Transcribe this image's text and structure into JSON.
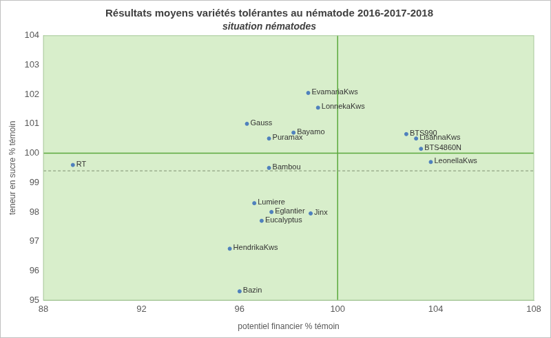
{
  "chart_data": {
    "type": "scatter",
    "title": "Résultats moyens variétés tolérantes au nématode 2016-2017-2018",
    "subtitle": "situation nématodes",
    "x_label": "potentiel financier % témoin",
    "y_label": "teneur en sucre % témoin",
    "point_labels": [
      "RT",
      "EvamariaKws",
      "LonnekaKws",
      "Gauss",
      "Bayamo",
      "Puramax",
      "BTS990",
      "LisannaKws",
      "BTS4860N",
      "LeonellaKws",
      "Bambou",
      "Lumiere",
      "Eglantier",
      "Jinx",
      "Eucalyptus",
      "HendrikaKws",
      "Bazin"
    ],
    "x": [
      89.2,
      98.8,
      99.2,
      96.3,
      98.2,
      97.2,
      102.8,
      103.2,
      103.4,
      103.8,
      97.2,
      96.6,
      97.3,
      98.9,
      96.9,
      95.6,
      96.0
    ],
    "values": [
      99.6,
      102.05,
      101.55,
      101.0,
      100.7,
      100.5,
      100.65,
      100.5,
      100.15,
      99.7,
      99.5,
      98.3,
      98.0,
      97.95,
      97.7,
      96.75,
      95.3
    ],
    "color": "#4f81bd",
    "xlim": [
      88,
      108
    ],
    "xticks": [
      88,
      92,
      96,
      100,
      104,
      108
    ],
    "ylim": [
      95,
      104
    ],
    "yticks": [
      95,
      96,
      97,
      98,
      99,
      100,
      101,
      102,
      103,
      104
    ],
    "grid": false,
    "reference_lines": [
      {
        "axis": "x",
        "value": 100,
        "line_style": "solid"
      },
      {
        "axis": "y",
        "value": 100,
        "line_style": "solid"
      },
      {
        "axis": "y",
        "value": 99.4,
        "line_style": "dashed"
      }
    ]
  }
}
